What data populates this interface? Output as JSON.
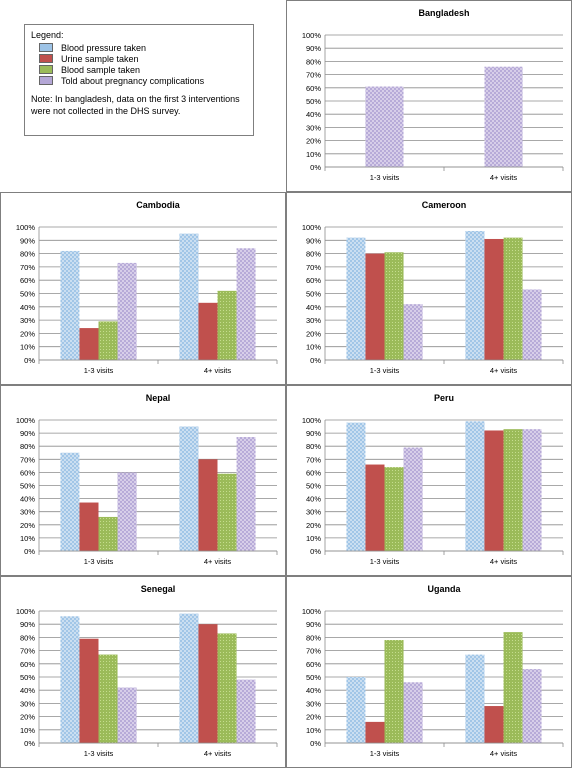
{
  "legend": {
    "title": "Legend:",
    "items": [
      {
        "label": "Blood pressure taken",
        "color": "#9dc3e6"
      },
      {
        "label": "Urine sample taken",
        "color": "#c0504d"
      },
      {
        "label": "Blood sample taken",
        "color": "#9bbb59"
      },
      {
        "label": "Told about pregnancy complications",
        "color": "#b4a7d6"
      }
    ],
    "note": "Note: In bangladesh, data on the first 3 interventions were not collected in the DHS survey."
  },
  "chart_data": [
    {
      "type": "bar",
      "title": "Bangladesh",
      "categories": [
        "1-3 visits",
        "4+ visits"
      ],
      "ylim": [
        0,
        100
      ],
      "yticks": [
        "0%",
        "10%",
        "20%",
        "30%",
        "40%",
        "50%",
        "60%",
        "70%",
        "80%",
        "90%",
        "100%"
      ],
      "series": [
        {
          "name": "Told about pregnancy complications",
          "values": [
            61,
            76
          ]
        }
      ]
    },
    {
      "type": "bar",
      "title": "Cambodia",
      "categories": [
        "1-3 visits",
        "4+ visits"
      ],
      "ylim": [
        0,
        100
      ],
      "yticks": [
        "0%",
        "10%",
        "20%",
        "30%",
        "40%",
        "50%",
        "60%",
        "70%",
        "80%",
        "90%",
        "100%"
      ],
      "series": [
        {
          "name": "Blood pressure taken",
          "values": [
            82,
            95
          ]
        },
        {
          "name": "Urine sample taken",
          "values": [
            24,
            43
          ]
        },
        {
          "name": "Blood sample taken",
          "values": [
            29,
            52
          ]
        },
        {
          "name": "Told about pregnancy complications",
          "values": [
            73,
            84
          ]
        }
      ]
    },
    {
      "type": "bar",
      "title": "Cameroon",
      "categories": [
        "1-3 visits",
        "4+ visits"
      ],
      "ylim": [
        0,
        100
      ],
      "yticks": [
        "0%",
        "10%",
        "20%",
        "30%",
        "40%",
        "50%",
        "60%",
        "70%",
        "80%",
        "90%",
        "100%"
      ],
      "series": [
        {
          "name": "Blood pressure taken",
          "values": [
            92,
            97
          ]
        },
        {
          "name": "Urine sample taken",
          "values": [
            80,
            91
          ]
        },
        {
          "name": "Blood sample taken",
          "values": [
            81,
            92
          ]
        },
        {
          "name": "Told about pregnancy complications",
          "values": [
            42,
            53
          ]
        }
      ]
    },
    {
      "type": "bar",
      "title": "Nepal",
      "categories": [
        "1-3 visits",
        "4+ visits"
      ],
      "ylim": [
        0,
        100
      ],
      "yticks": [
        "0%",
        "10%",
        "20%",
        "30%",
        "40%",
        "50%",
        "60%",
        "70%",
        "80%",
        "90%",
        "100%"
      ],
      "series": [
        {
          "name": "Blood pressure taken",
          "values": [
            75,
            95
          ]
        },
        {
          "name": "Urine sample taken",
          "values": [
            37,
            70
          ]
        },
        {
          "name": "Blood sample taken",
          "values": [
            26,
            59
          ]
        },
        {
          "name": "Told about pregnancy complications",
          "values": [
            60,
            87
          ]
        }
      ]
    },
    {
      "type": "bar",
      "title": "Peru",
      "categories": [
        "1-3 visits",
        "4+ visits"
      ],
      "ylim": [
        0,
        100
      ],
      "yticks": [
        "0%",
        "10%",
        "20%",
        "30%",
        "40%",
        "50%",
        "60%",
        "70%",
        "80%",
        "90%",
        "100%"
      ],
      "series": [
        {
          "name": "Blood pressure taken",
          "values": [
            98,
            99
          ]
        },
        {
          "name": "Urine sample taken",
          "values": [
            66,
            92
          ]
        },
        {
          "name": "Blood sample taken",
          "values": [
            64,
            93
          ]
        },
        {
          "name": "Told about pregnancy complications",
          "values": [
            79,
            93
          ]
        }
      ]
    },
    {
      "type": "bar",
      "title": "Senegal",
      "categories": [
        "1-3 visits",
        "4+ visits"
      ],
      "ylim": [
        0,
        100
      ],
      "yticks": [
        "0%",
        "10%",
        "20%",
        "30%",
        "40%",
        "50%",
        "60%",
        "70%",
        "80%",
        "90%",
        "100%"
      ],
      "series": [
        {
          "name": "Blood pressure taken",
          "values": [
            96,
            98
          ]
        },
        {
          "name": "Urine sample taken",
          "values": [
            79,
            90
          ]
        },
        {
          "name": "Blood sample taken",
          "values": [
            67,
            83
          ]
        },
        {
          "name": "Told about pregnancy complications",
          "values": [
            42,
            48
          ]
        }
      ]
    },
    {
      "type": "bar",
      "title": "Uganda",
      "categories": [
        "1-3 visits",
        "4+ visits"
      ],
      "ylim": [
        0,
        100
      ],
      "yticks": [
        "0%",
        "10%",
        "20%",
        "30%",
        "40%",
        "50%",
        "60%",
        "70%",
        "80%",
        "90%",
        "100%"
      ],
      "series": [
        {
          "name": "Blood pressure taken",
          "values": [
            50,
            67
          ]
        },
        {
          "name": "Urine sample taken",
          "values": [
            16,
            28
          ]
        },
        {
          "name": "Blood sample taken",
          "values": [
            78,
            84
          ]
        },
        {
          "name": "Told about pregnancy complications",
          "values": [
            46,
            56
          ]
        }
      ]
    }
  ]
}
